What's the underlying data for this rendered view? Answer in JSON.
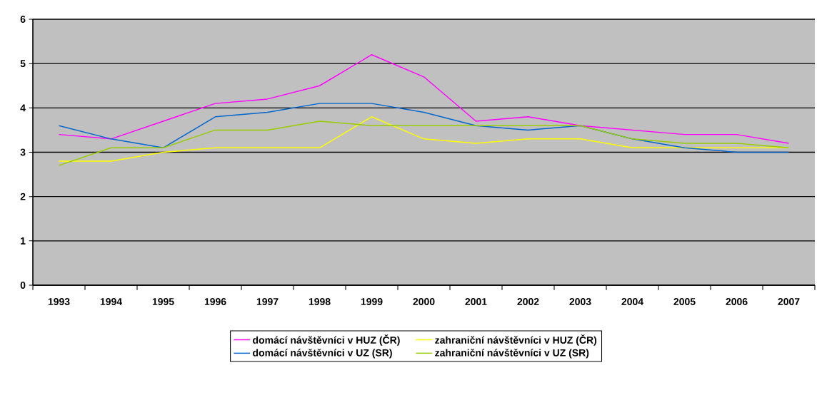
{
  "chart_data": {
    "type": "line",
    "categories": [
      "1993",
      "1994",
      "1995",
      "1996",
      "1997",
      "1998",
      "1999",
      "2000",
      "2001",
      "2002",
      "2003",
      "2004",
      "2005",
      "2006",
      "2007"
    ],
    "series": [
      {
        "name": "domácí návštěvníci v HUZ (ČR)",
        "color": "#ff00ff",
        "values": [
          3.4,
          3.3,
          3.7,
          4.1,
          4.2,
          4.5,
          5.2,
          4.7,
          3.7,
          3.8,
          3.6,
          3.5,
          3.4,
          3.4,
          3.2
        ]
      },
      {
        "name": "zahraniční návštěvníci v HUZ (ČR)",
        "color": "#ffff00",
        "values": [
          2.8,
          2.8,
          3.0,
          3.1,
          3.1,
          3.1,
          3.8,
          3.3,
          3.2,
          3.3,
          3.3,
          3.1,
          3.1,
          3.1,
          3.1
        ]
      },
      {
        "name": "domácí návštěvníci v UZ (SR)",
        "color": "#0066cc",
        "values": [
          3.6,
          3.3,
          3.1,
          3.8,
          3.9,
          4.1,
          4.1,
          3.9,
          3.6,
          3.5,
          3.6,
          3.3,
          3.1,
          3.0,
          3.0
        ]
      },
      {
        "name": "zahraniční návštěvníci v UZ (SR)",
        "color": "#99cc00",
        "values": [
          2.7,
          3.1,
          3.1,
          3.5,
          3.5,
          3.7,
          3.6,
          3.6,
          3.6,
          3.6,
          3.6,
          3.3,
          3.2,
          3.2,
          3.1
        ]
      }
    ],
    "ylim": [
      0,
      6
    ],
    "yticks": [
      0,
      1,
      2,
      3,
      4,
      5,
      6
    ],
    "grid": "y",
    "legend": "bottom",
    "marker": "none",
    "line_style": "solid"
  }
}
